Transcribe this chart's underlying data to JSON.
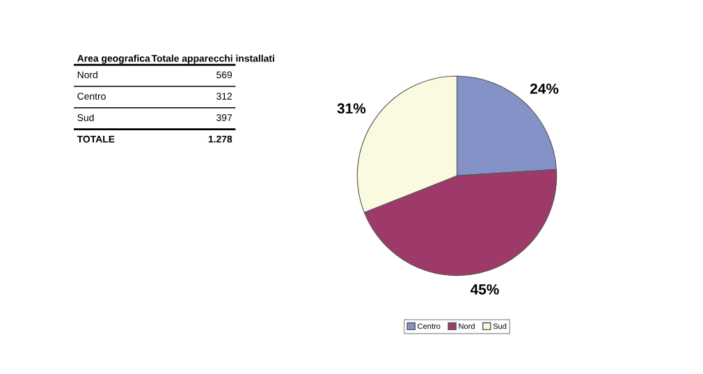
{
  "chart_data": [
    {
      "type": "other",
      "annotations": [
        "Area geografica",
        "Totale apparecchi installati"
      ],
      "categories": [
        "Nord",
        "Centro",
        "Sud",
        "TOTALE"
      ],
      "value_labels": [
        "569",
        "312",
        "397",
        "1.278"
      ]
    },
    {
      "type": "pie",
      "categories": [
        "Centro",
        "Nord",
        "Sud"
      ],
      "values": [
        24,
        45,
        31
      ],
      "colors": [
        "#8592c8",
        "#9e3a6a",
        "#fafae0"
      ],
      "value_labels": [
        "24%",
        "45%",
        "31%"
      ],
      "legend": "bottom"
    }
  ]
}
